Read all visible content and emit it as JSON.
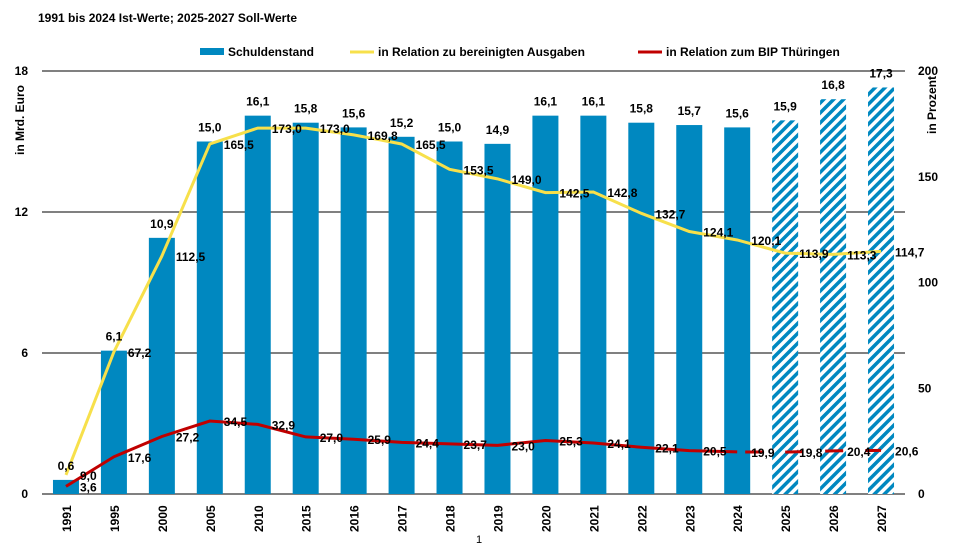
{
  "subtitle": "1991 bis 2024 Ist-Werte; 2025-2027  Soll-Werte",
  "footnote": "1",
  "colors": {
    "bar": "#0088c0",
    "yellow": "#f7e04b",
    "red": "#c00000"
  },
  "chart_data": {
    "type": "bar+line",
    "categories": [
      "1991",
      "1995",
      "2000",
      "2005",
      "2010",
      "2015",
      "2016",
      "2017",
      "2018",
      "2019",
      "2020",
      "2021",
      "2022",
      "2023",
      "2024",
      "2025",
      "2026",
      "2027"
    ],
    "projected_from": "2025",
    "ylabel_left": "in Mrd. Euro",
    "ylabel_right": "in Prozent",
    "ylim_left": [
      0,
      18
    ],
    "yticks_left": [
      0,
      6,
      12,
      18
    ],
    "ylim_right": [
      0,
      200
    ],
    "yticks_right": [
      0,
      50,
      100,
      150,
      200
    ],
    "legend_position": "top",
    "series": [
      {
        "name": "Schuldenstand",
        "type": "bar",
        "axis": "left",
        "values": [
          0.6,
          6.1,
          10.9,
          15.0,
          16.1,
          15.8,
          15.6,
          15.2,
          15.0,
          14.9,
          16.1,
          16.1,
          15.8,
          15.7,
          15.6,
          15.9,
          16.8,
          17.3
        ]
      },
      {
        "name": "in Relation zu bereinigten Ausgaben",
        "type": "line",
        "axis": "right",
        "values": [
          9.0,
          67.2,
          112.5,
          165.5,
          173.0,
          173.0,
          169.8,
          165.5,
          153.5,
          149.0,
          142.5,
          142.8,
          132.7,
          124.1,
          120.1,
          113.9,
          113.3,
          114.7
        ]
      },
      {
        "name": "in Relation zum BIP Thüringen",
        "type": "line",
        "axis": "right",
        "values": [
          3.6,
          17.6,
          27.2,
          34.5,
          32.9,
          27.0,
          25.9,
          24.4,
          23.7,
          23.0,
          25.3,
          24.1,
          22.1,
          20.5,
          19.9,
          19.8,
          20.4,
          20.6
        ]
      }
    ]
  }
}
